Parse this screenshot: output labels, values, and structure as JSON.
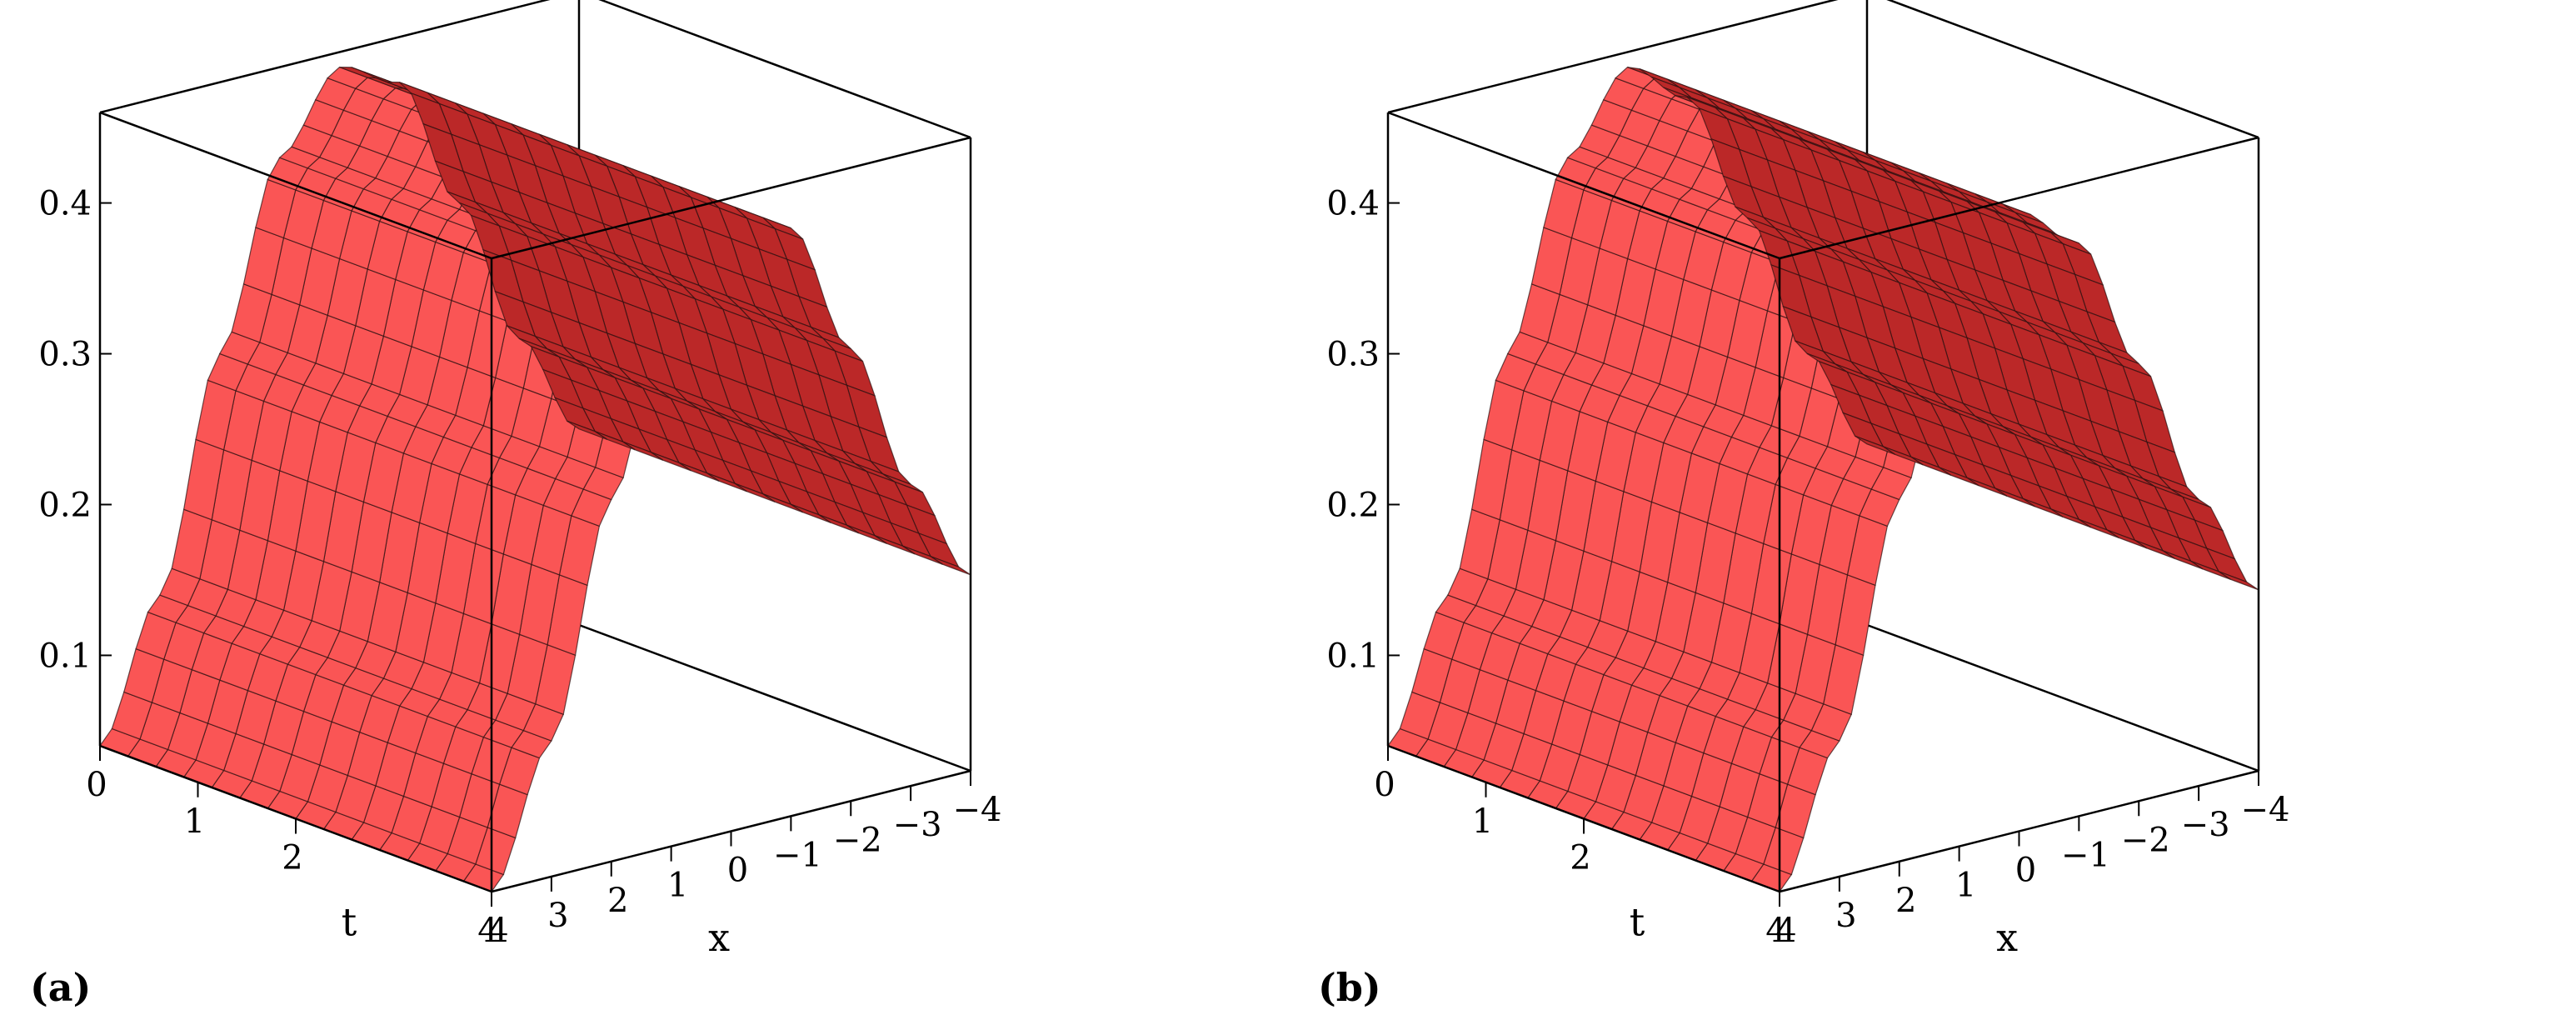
{
  "chart_data": [
    {
      "type": "surface",
      "panel_label": "(a)",
      "xlabel": "x",
      "tlabel": "t",
      "x_range": [
        -4,
        4
      ],
      "t_range": [
        0,
        4
      ],
      "z_range": [
        0.04,
        0.46
      ],
      "x_ticks": [
        "4",
        "3",
        "2",
        "1",
        "0",
        "−1",
        "−2",
        "−3",
        "−4"
      ],
      "t_ticks": [
        "0",
        "1",
        "2",
        "4"
      ],
      "z_ticks": [
        "0.1",
        "0.2",
        "0.3",
        "0.4"
      ],
      "surface": {
        "peak": 0.45,
        "peak_x": 0,
        "baseline": 0.04,
        "description_formula": "u(x,t) with peak 0.45 near x=0, nearly constant in t",
        "x_samples": [
          -4,
          -3,
          -2,
          -1,
          0,
          1,
          2,
          3,
          4
        ],
        "z_at_x": [
          0.17,
          0.24,
          0.34,
          0.43,
          0.45,
          0.4,
          0.28,
          0.13,
          0.04
        ]
      },
      "surface_color": "#ff4a4a",
      "mesh_color": "#2a1010"
    },
    {
      "type": "surface",
      "panel_label": "(b)",
      "xlabel": "x",
      "tlabel": "t",
      "x_range": [
        -4,
        4
      ],
      "t_range": [
        0,
        4
      ],
      "z_range": [
        0.04,
        0.46
      ],
      "x_ticks": [
        "4",
        "3",
        "2",
        "1",
        "0",
        "−1",
        "−2",
        "−3",
        "−4"
      ],
      "t_ticks": [
        "0",
        "1",
        "2",
        "4"
      ],
      "z_ticks": [
        "0.1",
        "0.2",
        "0.3",
        "0.4"
      ],
      "surface": {
        "peak": 0.45,
        "peak_x": 0,
        "baseline": 0.04,
        "x_samples": [
          -4,
          -3,
          -2,
          -1,
          0,
          1,
          2,
          3,
          4
        ],
        "z_at_x": [
          0.16,
          0.23,
          0.33,
          0.42,
          0.45,
          0.4,
          0.28,
          0.13,
          0.04
        ]
      },
      "surface_color": "#ff4a4a",
      "mesh_color": "#2a1010"
    }
  ]
}
